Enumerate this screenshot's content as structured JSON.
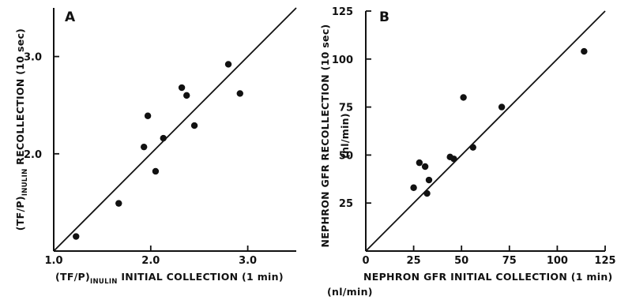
{
  "chart_data": [
    {
      "type": "scatter",
      "panel": "A",
      "panel_label": "A",
      "xlabel": {
        "prefix": "(TF/P)",
        "sub": "INULIN",
        "rest": " INITIAL COLLECTION (1 min)"
      },
      "ylabel": {
        "prefix": "(TF/P)",
        "sub": "INULIN",
        "rest": " RECOLLECTION (10 sec)"
      },
      "xlim": [
        1.0,
        3.5
      ],
      "ylim": [
        1.0,
        3.5
      ],
      "x_ticks": [
        1.0,
        2.0,
        3.0
      ],
      "x_tick_labels": [
        "1.0",
        "2.0",
        "3.0"
      ],
      "y_ticks": [
        2.0,
        3.0
      ],
      "y_tick_labels": [
        "2.0",
        "3.0"
      ],
      "grid": false,
      "identity_line": true,
      "points": [
        {
          "x": 1.23,
          "y": 1.15
        },
        {
          "x": 1.67,
          "y": 1.49
        },
        {
          "x": 1.93,
          "y": 2.07
        },
        {
          "x": 1.97,
          "y": 2.39
        },
        {
          "x": 2.05,
          "y": 1.82
        },
        {
          "x": 2.13,
          "y": 2.16
        },
        {
          "x": 2.32,
          "y": 2.68
        },
        {
          "x": 2.37,
          "y": 2.6
        },
        {
          "x": 2.45,
          "y": 2.29
        },
        {
          "x": 2.8,
          "y": 2.92
        },
        {
          "x": 2.92,
          "y": 2.62
        }
      ]
    },
    {
      "type": "scatter",
      "panel": "B",
      "panel_label": "B",
      "xlabel": {
        "line1": "NEPHRON GFR INITIAL COLLECTION (1 min)",
        "line2": "(nl/min)"
      },
      "ylabel": {
        "line1": "NEPHRON GFR RECOLLECTION (10 sec)",
        "line2": "(nl/min)"
      },
      "xlim": [
        0,
        125
      ],
      "ylim": [
        0,
        125
      ],
      "x_ticks": [
        0,
        25,
        50,
        75,
        100,
        125
      ],
      "x_tick_labels": [
        "0",
        "25",
        "50",
        "75",
        "100",
        "125"
      ],
      "y_ticks": [
        25,
        50,
        75,
        100,
        125
      ],
      "y_tick_labels": [
        "25",
        "50",
        "75",
        "100",
        "125"
      ],
      "grid": false,
      "identity_line": true,
      "points": [
        {
          "x": 25,
          "y": 33
        },
        {
          "x": 28,
          "y": 46
        },
        {
          "x": 31,
          "y": 44
        },
        {
          "x": 32,
          "y": 30
        },
        {
          "x": 33,
          "y": 37
        },
        {
          "x": 44,
          "y": 49
        },
        {
          "x": 46,
          "y": 48
        },
        {
          "x": 51,
          "y": 80
        },
        {
          "x": 56,
          "y": 54
        },
        {
          "x": 71,
          "y": 75
        },
        {
          "x": 114,
          "y": 104
        }
      ]
    }
  ]
}
